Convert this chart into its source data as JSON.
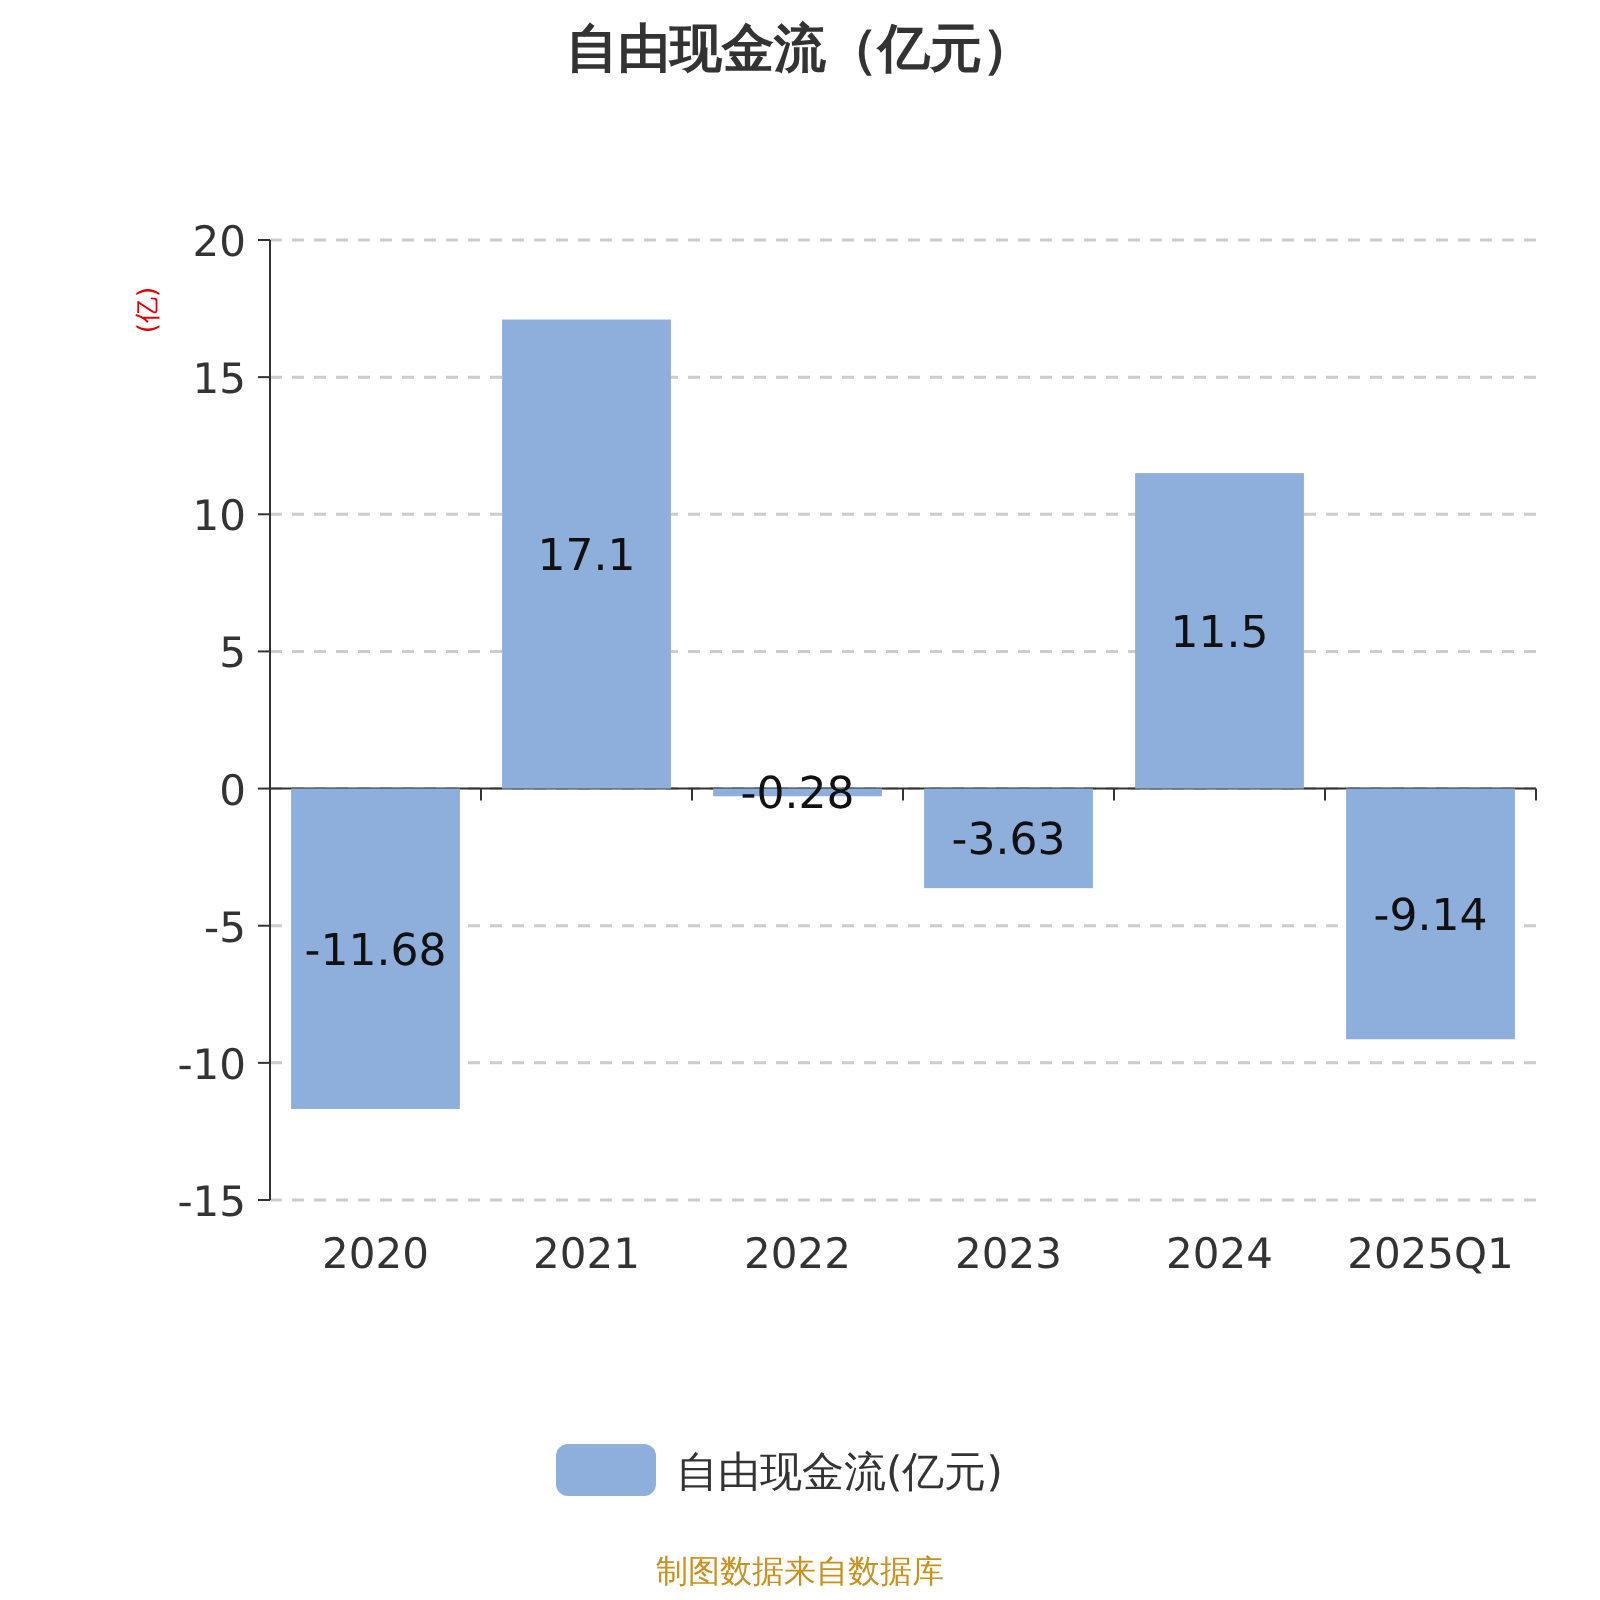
{
  "chart_data": {
    "type": "bar",
    "title": "自由现金流（亿元）",
    "ylabel": "(亿)",
    "categories": [
      "2020",
      "2021",
      "2022",
      "2023",
      "2024",
      "2025Q1"
    ],
    "series": [
      {
        "name": "自由现金流(亿元)",
        "color": "#8eaedb",
        "values": [
          -11.68,
          17.1,
          -0.28,
          -3.63,
          11.5,
          -9.14
        ]
      }
    ],
    "ylim": [
      -15,
      20
    ],
    "yticks": [
      -15,
      -10,
      -5,
      0,
      5,
      10,
      15,
      20
    ],
    "grid": "y",
    "legend": "bottom",
    "data_labels": true,
    "annotations": [
      "制图数据来自数据库"
    ]
  }
}
